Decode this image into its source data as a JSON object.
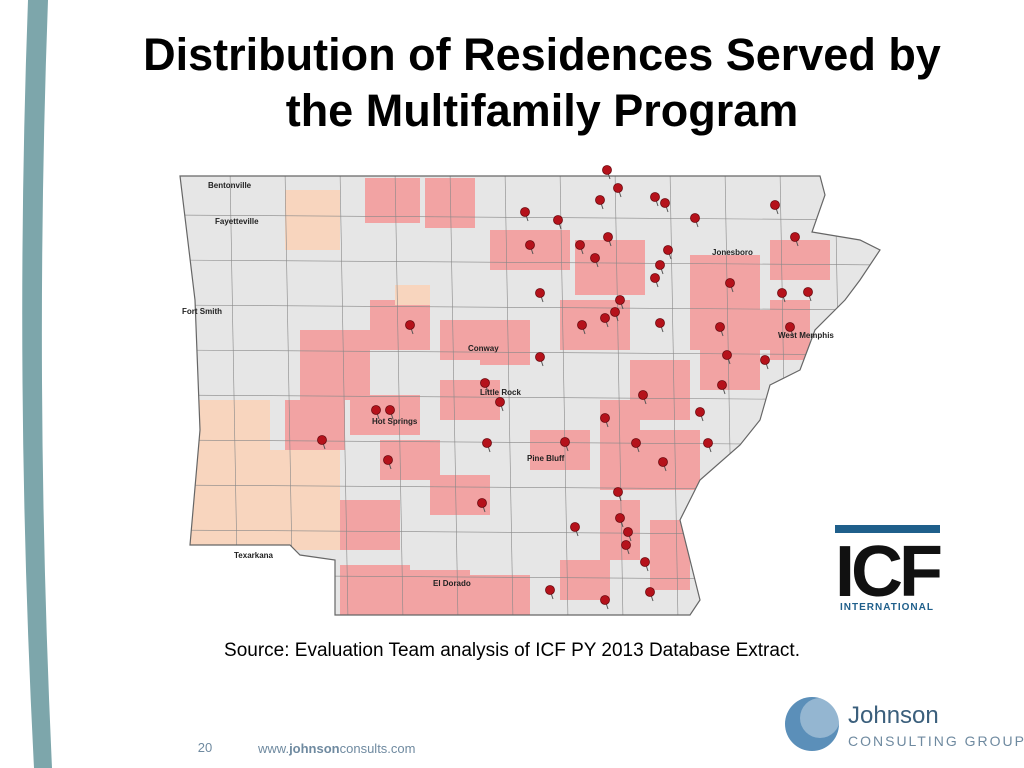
{
  "header": {
    "title_lines": [
      "Distribution of Residences Served by",
      "the Multifamily Program"
    ]
  },
  "map": {
    "cities": [
      "Bentonville",
      "Fayetteville",
      "Fort Smith",
      "Conway",
      "Little Rock",
      "Hot Springs",
      "Pine Bluff",
      "Jonesboro",
      "West Memphis",
      "Texarkana",
      "El Dorado"
    ]
  },
  "source": "Source: Evaluation Team analysis of ICF PY 2013 Database Extract.",
  "logos": {
    "icf": "ICF",
    "icf_sub": "INTERNATIONAL",
    "johnson": "Johnson",
    "johnson_sub": "CONSULTING GROUP"
  },
  "footer": {
    "page": "20",
    "url_prefix": "www.",
    "url_bold": "johnson",
    "url_suffix": "consults.com"
  }
}
